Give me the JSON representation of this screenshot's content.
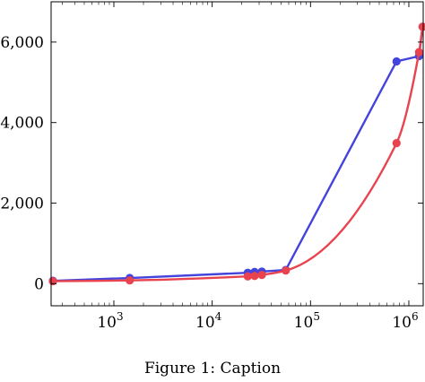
{
  "caption": "Figure 1: Caption",
  "chart_data": {
    "type": "line",
    "title": "",
    "xlabel": "",
    "ylabel": "",
    "x_scale": "log",
    "xlim": [
      230,
      1400000
    ],
    "ylim": [
      -550,
      7000
    ],
    "grid": false,
    "legend": "none",
    "x_ticks": [
      {
        "value": 1000,
        "base": "10",
        "exp": "3"
      },
      {
        "value": 10000,
        "base": "10",
        "exp": "4"
      },
      {
        "value": 100000,
        "base": "10",
        "exp": "5"
      },
      {
        "value": 1000000,
        "base": "10",
        "exp": "6"
      }
    ],
    "y_ticks": [
      {
        "value": 0,
        "label": "0"
      },
      {
        "value": 2000,
        "label": "2,000"
      },
      {
        "value": 4000,
        "label": "4,000"
      },
      {
        "value": 6000,
        "label": "6,000"
      }
    ],
    "series": [
      {
        "color": "#4444dd",
        "smooth": false,
        "points": [
          [
            240,
            70
          ],
          [
            1450,
            140
          ],
          [
            23000,
            270
          ],
          [
            27000,
            290
          ],
          [
            32000,
            300
          ],
          [
            56000,
            340
          ],
          [
            750000,
            5520
          ],
          [
            1270000,
            5650
          ],
          [
            1380000,
            6380
          ]
        ]
      },
      {
        "color": "#e8434f",
        "smooth": true,
        "points": [
          [
            240,
            60
          ],
          [
            1450,
            80
          ],
          [
            23000,
            180
          ],
          [
            27000,
            190
          ],
          [
            32000,
            215
          ],
          [
            56000,
            325
          ],
          [
            750000,
            3490
          ],
          [
            1270000,
            5750
          ],
          [
            1380000,
            6380
          ]
        ]
      }
    ]
  }
}
